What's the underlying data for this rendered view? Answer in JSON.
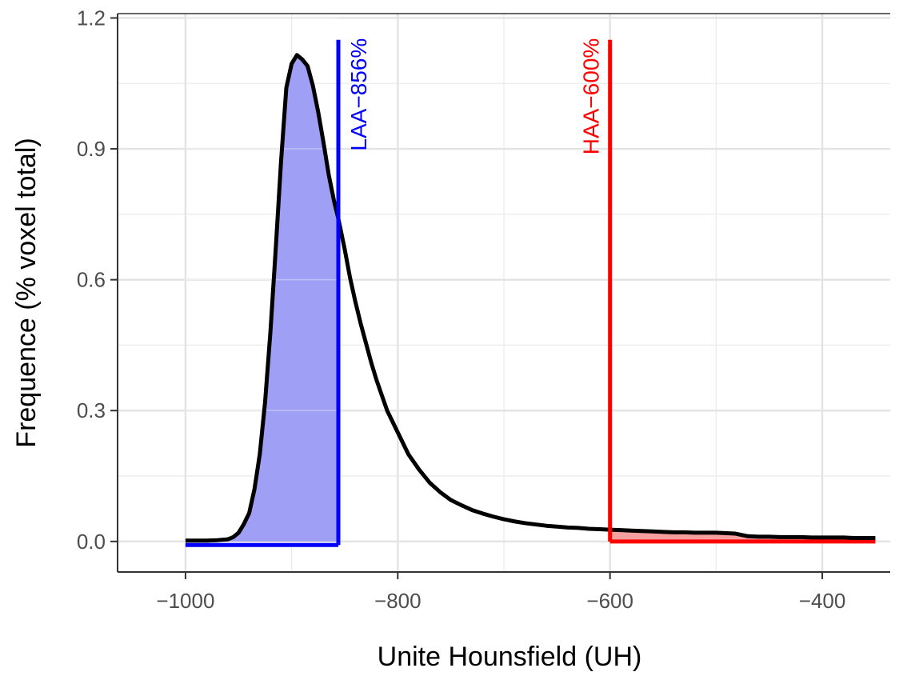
{
  "chart_data": {
    "type": "area",
    "title": "",
    "xlabel": "Unite Hounsfield (UH)",
    "ylabel": "Frequence (% voxel total)",
    "xlim": [
      -1064,
      -336
    ],
    "ylim": [
      -0.07,
      1.21
    ],
    "x_ticks": [
      -1000,
      -800,
      -600,
      -400
    ],
    "x_tick_labels": [
      "−1000",
      "−800",
      "−600",
      "−400"
    ],
    "y_ticks": [
      0.0,
      0.3,
      0.6,
      0.9,
      1.2
    ],
    "y_tick_labels": [
      "0.0",
      "0.3",
      "0.6",
      "0.9",
      "1.2"
    ],
    "grid": true,
    "series": [
      {
        "x": [
          -1000,
          -990,
          -980,
          -970,
          -960,
          -955,
          -950,
          -945,
          -940,
          -935,
          -930,
          -925,
          -920,
          -915,
          -910,
          -905,
          -900,
          -895,
          -890,
          -885,
          -880,
          -875,
          -870,
          -865,
          -860,
          -856,
          -850,
          -845,
          -840,
          -835,
          -830,
          -825,
          -820,
          -815,
          -810,
          -800,
          -790,
          -780,
          -770,
          -760,
          -750,
          -740,
          -730,
          -720,
          -710,
          -700,
          -690,
          -680,
          -670,
          -660,
          -650,
          -640,
          -630,
          -620,
          -610,
          -600,
          -590,
          -580,
          -570,
          -560,
          -550,
          -540,
          -530,
          -520,
          -510,
          -500,
          -490,
          -482,
          -470,
          -460,
          -450,
          -440,
          -430,
          -420,
          -410,
          -400,
          -390,
          -380,
          -370,
          -360,
          -350
        ],
        "y": [
          0.002,
          0.002,
          0.002,
          0.003,
          0.005,
          0.01,
          0.02,
          0.04,
          0.065,
          0.12,
          0.2,
          0.32,
          0.48,
          0.67,
          0.87,
          1.04,
          1.095,
          1.115,
          1.105,
          1.09,
          1.045,
          0.985,
          0.915,
          0.84,
          0.78,
          0.74,
          0.67,
          0.605,
          0.55,
          0.5,
          0.455,
          0.41,
          0.37,
          0.335,
          0.3,
          0.25,
          0.2,
          0.165,
          0.135,
          0.113,
          0.095,
          0.083,
          0.072,
          0.064,
          0.057,
          0.051,
          0.046,
          0.042,
          0.039,
          0.036,
          0.034,
          0.032,
          0.031,
          0.029,
          0.028,
          0.027,
          0.026,
          0.025,
          0.024,
          0.023,
          0.022,
          0.021,
          0.021,
          0.02,
          0.02,
          0.02,
          0.019,
          0.018,
          0.012,
          0.011,
          0.011,
          0.01,
          0.01,
          0.01,
          0.009,
          0.009,
          0.009,
          0.009,
          0.008,
          0.008,
          0.008
        ],
        "color": "#000000"
      }
    ],
    "shaded_regions": [
      {
        "from": -1000,
        "to": -856,
        "color": "#9f9ff5"
      },
      {
        "from": -600,
        "to": -350,
        "color": "#f59f9f"
      }
    ],
    "baselines": [
      {
        "from": -1000,
        "to": -856,
        "y": -0.008,
        "color": "#0000ff"
      },
      {
        "from": -600,
        "to": -350,
        "y": 0.0,
        "color": "#ff0000"
      }
    ],
    "vlines": [
      {
        "x": -856,
        "y_top": 1.15,
        "label": "LAA−856%",
        "color": "#0000ff"
      },
      {
        "x": -600,
        "y_top": 1.15,
        "label": "HAA−600%",
        "color": "#ff0000"
      }
    ]
  }
}
